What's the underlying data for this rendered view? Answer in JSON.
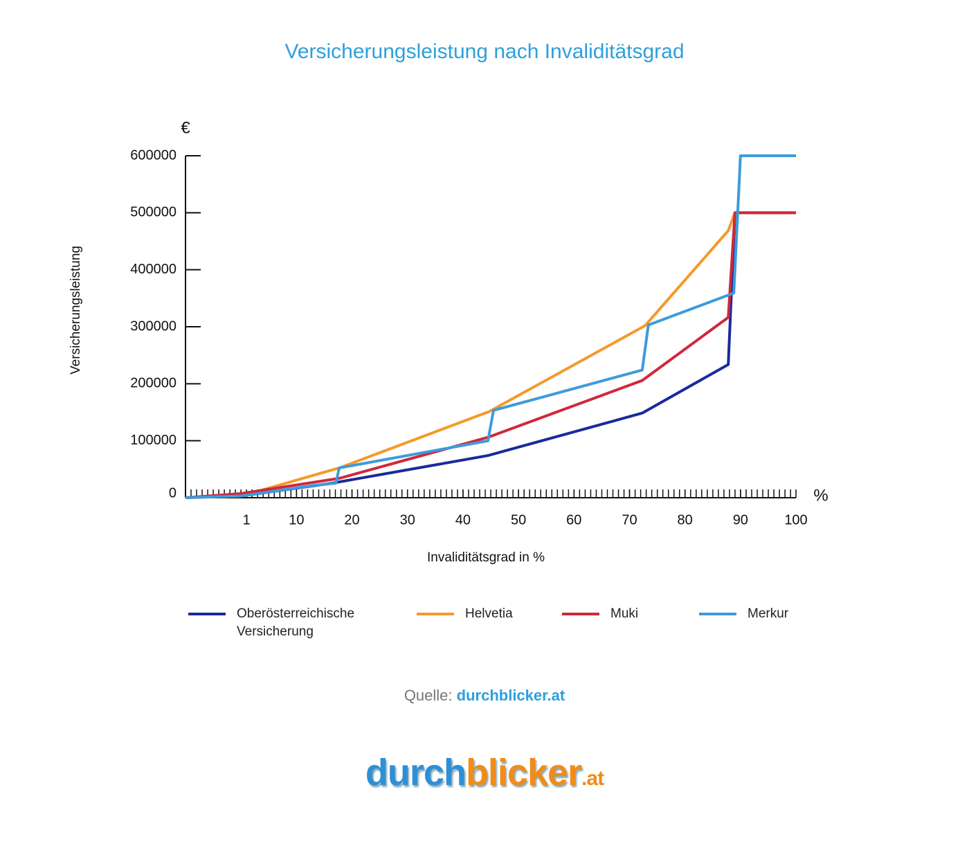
{
  "chart_data": {
    "type": "line",
    "title": "Versicherungsleistung nach Invaliditätsgrad",
    "y_unit": "€",
    "x_unit": "%",
    "ylabel": "Versicherungsleistung",
    "xlabel": "Invaliditätsgrad in %",
    "xlim": [
      -10,
      100
    ],
    "xticks": [
      1,
      10,
      20,
      30,
      40,
      50,
      60,
      70,
      80,
      90,
      100
    ],
    "ylim": [
      0,
      600000
    ],
    "yticks": [
      0,
      100000,
      200000,
      300000,
      400000,
      500000,
      600000
    ],
    "series": [
      {
        "name": "Oberösterreichische Versicherung",
        "color": "#1a2a9c",
        "x": [
          -10,
          0,
          16.4,
          44.5,
          72.3,
          87.8,
          89.0,
          100
        ],
        "values": [
          0,
          3000,
          25500,
          74000,
          148500,
          233700,
          500000,
          500000
        ]
      },
      {
        "name": "Helvetia",
        "color": "#f39a2b",
        "x": [
          -10,
          0,
          17.7,
          44.7,
          72.8,
          87.8,
          89.0,
          100
        ],
        "values": [
          0,
          3000,
          52300,
          151000,
          301800,
          468600,
          500000,
          500000
        ]
      },
      {
        "name": "Muki",
        "color": "#d0283c",
        "x": [
          -10,
          0,
          17.7,
          44.5,
          72.3,
          87.8,
          89.0,
          100
        ],
        "values": [
          0,
          7300,
          34000,
          106000,
          205700,
          316400,
          500000,
          500000
        ]
      },
      {
        "name": "Merkur",
        "color": "#3d9bdc",
        "x": [
          -10,
          0,
          13.3,
          17.1,
          17.7,
          44.5,
          45.5,
          72.3,
          73.4,
          88.8,
          90.0,
          100
        ],
        "values": [
          0,
          3000,
          21900,
          25500,
          52300,
          99800,
          153300,
          224000,
          303000,
          359000,
          600000,
          600000
        ]
      }
    ]
  },
  "source": {
    "label": "Quelle:",
    "link": "durchblicker.at"
  },
  "logo": {
    "part1": "durch",
    "part2": "blicker",
    "suffix": ".at"
  }
}
